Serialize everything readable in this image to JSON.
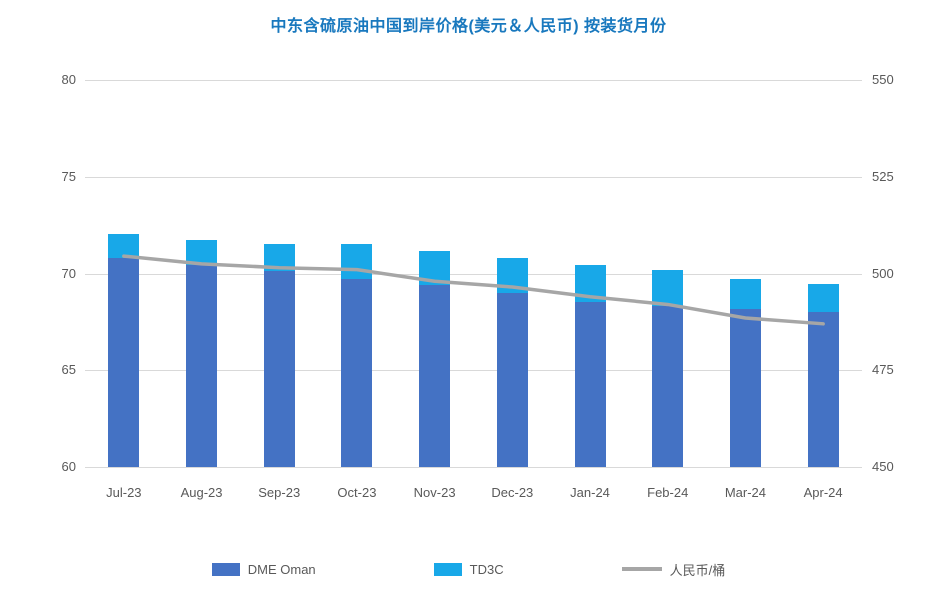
{
  "chart_data": {
    "type": "bar",
    "combo": "stacked-column-with-line",
    "title": "中东含硫原油中国到岸价格(美元＆人民币) 按装货月份",
    "title_color": "#1878BE",
    "categories": [
      "Jul-23",
      "Aug-23",
      "Sep-23",
      "Oct-23",
      "Nov-23",
      "Dec-23",
      "Jan-24",
      "Feb-24",
      "Mar-24",
      "Apr-24"
    ],
    "series": [
      {
        "name": "DME Oman",
        "type": "column",
        "axis": "left",
        "color": "#4472C4",
        "values": [
          70.8,
          70.45,
          70.15,
          69.7,
          69.4,
          69.0,
          68.55,
          68.3,
          68.15,
          68.0
        ]
      },
      {
        "name": "TD3C",
        "type": "column-stacked-segment",
        "axis": "left",
        "color": "#18A8E8",
        "values": [
          1.25,
          1.3,
          1.4,
          1.85,
          1.75,
          1.8,
          1.9,
          1.9,
          1.55,
          1.45
        ],
        "stack_totals": [
          72.05,
          71.75,
          71.55,
          71.55,
          71.15,
          70.8,
          70.45,
          70.2,
          69.7,
          69.45
        ]
      },
      {
        "name": "人民币/桶",
        "type": "line",
        "axis": "right",
        "color": "#A6A6A6",
        "values": [
          504.5,
          502.5,
          501.5,
          501,
          498,
          496.5,
          494,
          492,
          488.5,
          487
        ]
      }
    ],
    "left_axis": {
      "min": 60,
      "max": 80,
      "ticks": [
        80,
        75,
        70,
        65,
        60
      ]
    },
    "right_axis": {
      "min": 450,
      "max": 550,
      "ticks": [
        550,
        525,
        500,
        475,
        450
      ]
    },
    "grid": true,
    "legend_position": "bottom",
    "styles": {
      "grid_color": "#D9D9D9",
      "axis_line_color": "#BFBFBF",
      "tick_label_color": "#595959",
      "background": "#FFFFFF"
    }
  }
}
